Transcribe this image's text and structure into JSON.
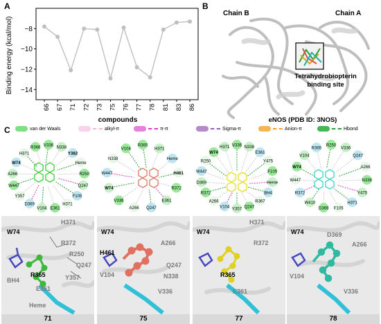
{
  "panel_labels": {
    "a": "A",
    "b": "B",
    "c": "C"
  },
  "chart_data": {
    "type": "line",
    "categories": [
      "66",
      "67",
      "71",
      "72",
      "73",
      "75",
      "76",
      "77",
      "78",
      "81",
      "83",
      "86"
    ],
    "values": [
      -7.8,
      -8.8,
      -12.1,
      -8.0,
      -8.1,
      -12.9,
      -7.9,
      -11.8,
      -12.8,
      -8.1,
      -7.4,
      -7.3
    ],
    "title": "",
    "xlabel": "compounds",
    "ylabel": "Binding energy (kcal/mol)",
    "ylim": [
      -15,
      -6
    ],
    "yticks": [
      -8,
      -10,
      -12,
      -14
    ],
    "grid": false,
    "line_color": "#bfbfbf"
  },
  "panel_b": {
    "chain_b": "Chain B",
    "chain_a": "Chain A",
    "site_line1": "Tetrahydrobiopterin",
    "site_line2": "binding site",
    "caption": "eNOS (PDB ID: 3NOS)"
  },
  "legend": [
    {
      "label": "van der Waals",
      "color": "#7ee07e",
      "style": "swatch"
    },
    {
      "label": "alkyl-π",
      "color": "#f4b8df",
      "style": "dash"
    },
    {
      "label": "π-π",
      "color": "#d63fc6",
      "style": "dash"
    },
    {
      "label": "Sigma-π",
      "color": "#9b59b6",
      "style": "dash"
    },
    {
      "label": "Anion-π",
      "color": "#f0a030",
      "style": "dash"
    },
    {
      "label": "Hbond",
      "color": "#2e9e3a",
      "style": "dash"
    }
  ],
  "interaction_panels": [
    {
      "residues": [
        "V336",
        "N338",
        "Y382",
        "Heme",
        "R250",
        "Q247",
        "F105",
        "H371",
        "E361",
        "V104",
        "D369",
        "Y357",
        "W447",
        "A266",
        "W74",
        "H371",
        "R366"
      ]
    },
    {
      "residues": [
        "R365",
        "H371",
        "Heme",
        "H461",
        "R372",
        "E361",
        "Q247",
        "A266",
        "V336",
        "W74",
        "W447",
        "N338",
        "V104"
      ]
    },
    {
      "residues": [
        "V336",
        "N338",
        "E361",
        "Y475",
        "F105",
        "Heme",
        "BH4",
        "R367",
        "Q247",
        "Y357",
        "V104",
        "A266",
        "R372",
        "D369",
        "W447",
        "R250",
        "W74",
        "H371"
      ]
    },
    {
      "residues": [
        "R250",
        "V336",
        "Q247",
        "A266",
        "N338",
        "Y475",
        "H371",
        "F105",
        "D369",
        "W410",
        "R372",
        "W447",
        "W74",
        "V104",
        "R365"
      ]
    }
  ],
  "render_panels": [
    {
      "caption": "71",
      "labels": [
        "W74",
        "H371",
        "R372",
        "R250",
        "Q247",
        "R365",
        "Y357",
        "E361",
        "BH4",
        "Heme"
      ]
    },
    {
      "caption": "75",
      "labels": [
        "W74",
        "H461",
        "A266",
        "V104",
        "Q247",
        "N338",
        "V336"
      ]
    },
    {
      "caption": "77",
      "labels": [
        "W74",
        "H371",
        "R372",
        "R365",
        "E361"
      ]
    },
    {
      "caption": "78",
      "labels": [
        "W74",
        "D369",
        "A266",
        "V104",
        "V336"
      ]
    }
  ]
}
